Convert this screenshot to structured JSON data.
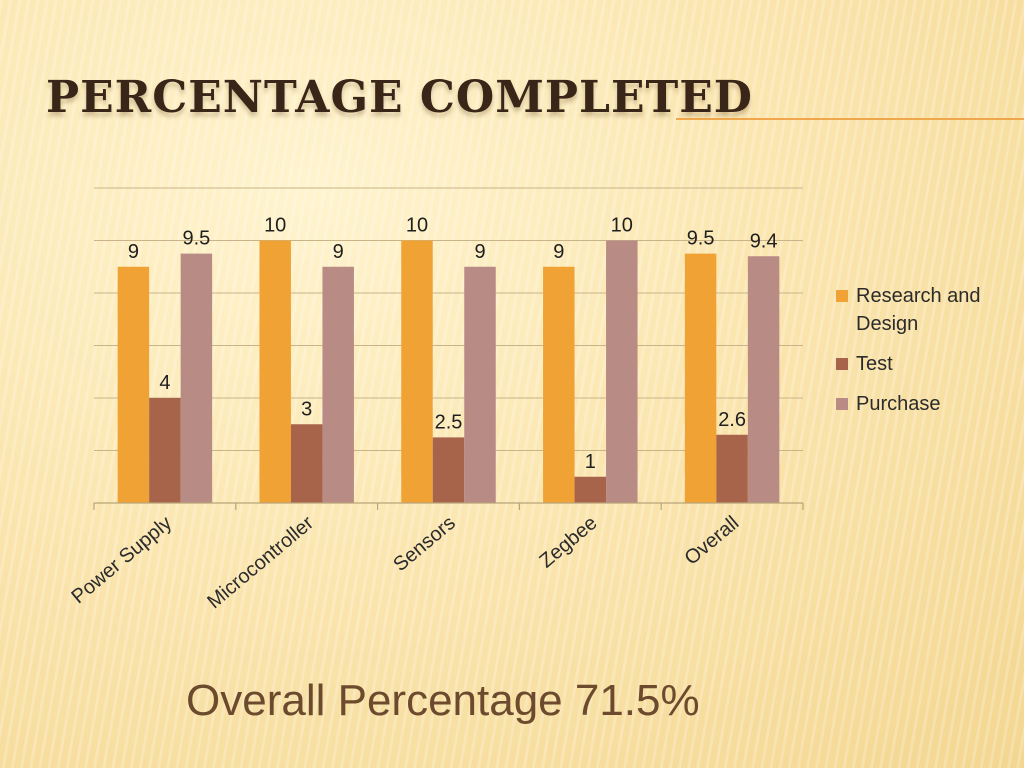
{
  "slide": {
    "title": "Percentage  Completed",
    "footer": "Overall Percentage 71.5%"
  },
  "colors": {
    "research": "#f0a334",
    "test": "#a8644a",
    "purchase": "#b88c84",
    "grid": "#c9b48a",
    "title_rule": "#f0a64a"
  },
  "chart_data": {
    "type": "bar",
    "title": "",
    "xlabel": "",
    "ylabel": "",
    "ylim": [
      0,
      12
    ],
    "categories": [
      "Power Supply",
      "Microcontroller",
      "Sensors",
      "Zegbee",
      "Overall"
    ],
    "series": [
      {
        "name": "Research and Design",
        "values": [
          9,
          10,
          10,
          9,
          9.5
        ]
      },
      {
        "name": "Test",
        "values": [
          4,
          3,
          2.5,
          1,
          2.6
        ]
      },
      {
        "name": "Purchase",
        "values": [
          9.5,
          9,
          9,
          10,
          9.4
        ]
      }
    ],
    "legend_position": "right",
    "grid": true,
    "data_labels": true
  }
}
